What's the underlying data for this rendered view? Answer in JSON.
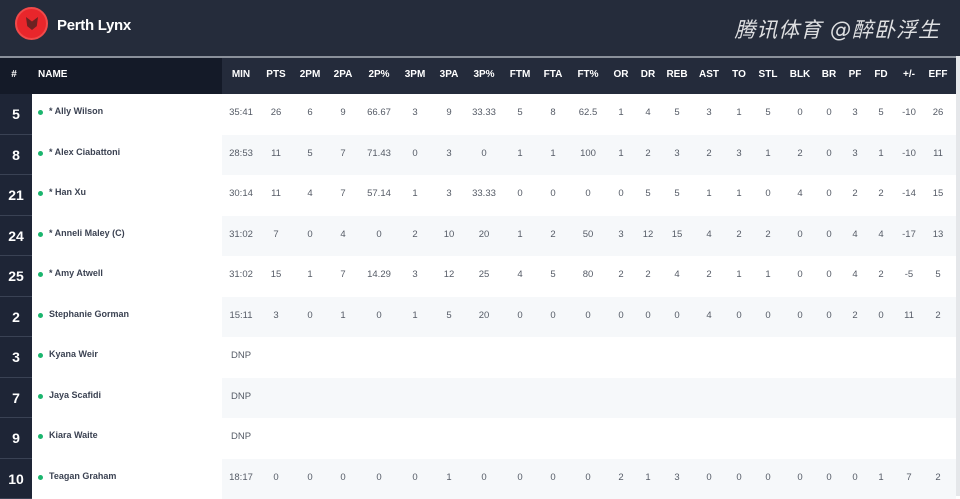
{
  "team": {
    "name": "Perth Lynx",
    "logo_icon": "lynx-logo-icon",
    "logo_color": "#e8262b"
  },
  "columns": [
    "#",
    "NAME",
    "MIN",
    "PTS",
    "2PM",
    "2PA",
    "2P%",
    "3PM",
    "3PA",
    "3P%",
    "FTM",
    "FTA",
    "FT%",
    "OR",
    "DR",
    "REB",
    "AST",
    "TO",
    "STL",
    "BLK",
    "BR",
    "PF",
    "FD",
    "+/-",
    "EFF"
  ],
  "players": [
    {
      "num": "5",
      "name": "* Ally Wilson",
      "stats": [
        "35:41",
        "26",
        "6",
        "9",
        "66.67",
        "3",
        "9",
        "33.33",
        "5",
        "8",
        "62.5",
        "1",
        "4",
        "5",
        "3",
        "1",
        "5",
        "0",
        "0",
        "3",
        "5",
        "-10",
        "26"
      ]
    },
    {
      "num": "8",
      "name": "* Alex Ciabattoni",
      "stats": [
        "28:53",
        "11",
        "5",
        "7",
        "71.43",
        "0",
        "3",
        "0",
        "1",
        "1",
        "100",
        "1",
        "2",
        "3",
        "2",
        "3",
        "1",
        "2",
        "0",
        "3",
        "1",
        "-10",
        "11"
      ]
    },
    {
      "num": "21",
      "name": "* Han Xu",
      "stats": [
        "30:14",
        "11",
        "4",
        "7",
        "57.14",
        "1",
        "3",
        "33.33",
        "0",
        "0",
        "0",
        "0",
        "5",
        "5",
        "1",
        "1",
        "0",
        "4",
        "0",
        "2",
        "2",
        "-14",
        "15"
      ]
    },
    {
      "num": "24",
      "name": "* Anneli Maley (C)",
      "stats": [
        "31:02",
        "7",
        "0",
        "4",
        "0",
        "2",
        "10",
        "20",
        "1",
        "2",
        "50",
        "3",
        "12",
        "15",
        "4",
        "2",
        "2",
        "0",
        "0",
        "4",
        "4",
        "-17",
        "13"
      ]
    },
    {
      "num": "25",
      "name": "* Amy Atwell",
      "stats": [
        "31:02",
        "15",
        "1",
        "7",
        "14.29",
        "3",
        "12",
        "25",
        "4",
        "5",
        "80",
        "2",
        "2",
        "4",
        "2",
        "1",
        "1",
        "0",
        "0",
        "4",
        "2",
        "-5",
        "5"
      ]
    },
    {
      "num": "2",
      "name": "Stephanie Gorman",
      "stats": [
        "15:11",
        "3",
        "0",
        "1",
        "0",
        "1",
        "5",
        "20",
        "0",
        "0",
        "0",
        "0",
        "0",
        "0",
        "4",
        "0",
        "0",
        "0",
        "0",
        "2",
        "0",
        "11",
        "2"
      ]
    },
    {
      "num": "3",
      "name": "Kyana Weir",
      "stats": [
        "DNP"
      ]
    },
    {
      "num": "7",
      "name": "Jaya Scafidi",
      "stats": [
        "DNP"
      ]
    },
    {
      "num": "9",
      "name": "Kiara Waite",
      "stats": [
        "DNP"
      ]
    },
    {
      "num": "10",
      "name": "Teagan Graham",
      "stats": [
        "18:17",
        "0",
        "0",
        "0",
        "0",
        "0",
        "1",
        "0",
        "0",
        "0",
        "0",
        "2",
        "1",
        "3",
        "0",
        "0",
        "0",
        "0",
        "0",
        "0",
        "1",
        "7",
        "2"
      ]
    }
  ],
  "status_color": "#1bb56e",
  "watermark": "腾讯体育 @醉卧浮生"
}
